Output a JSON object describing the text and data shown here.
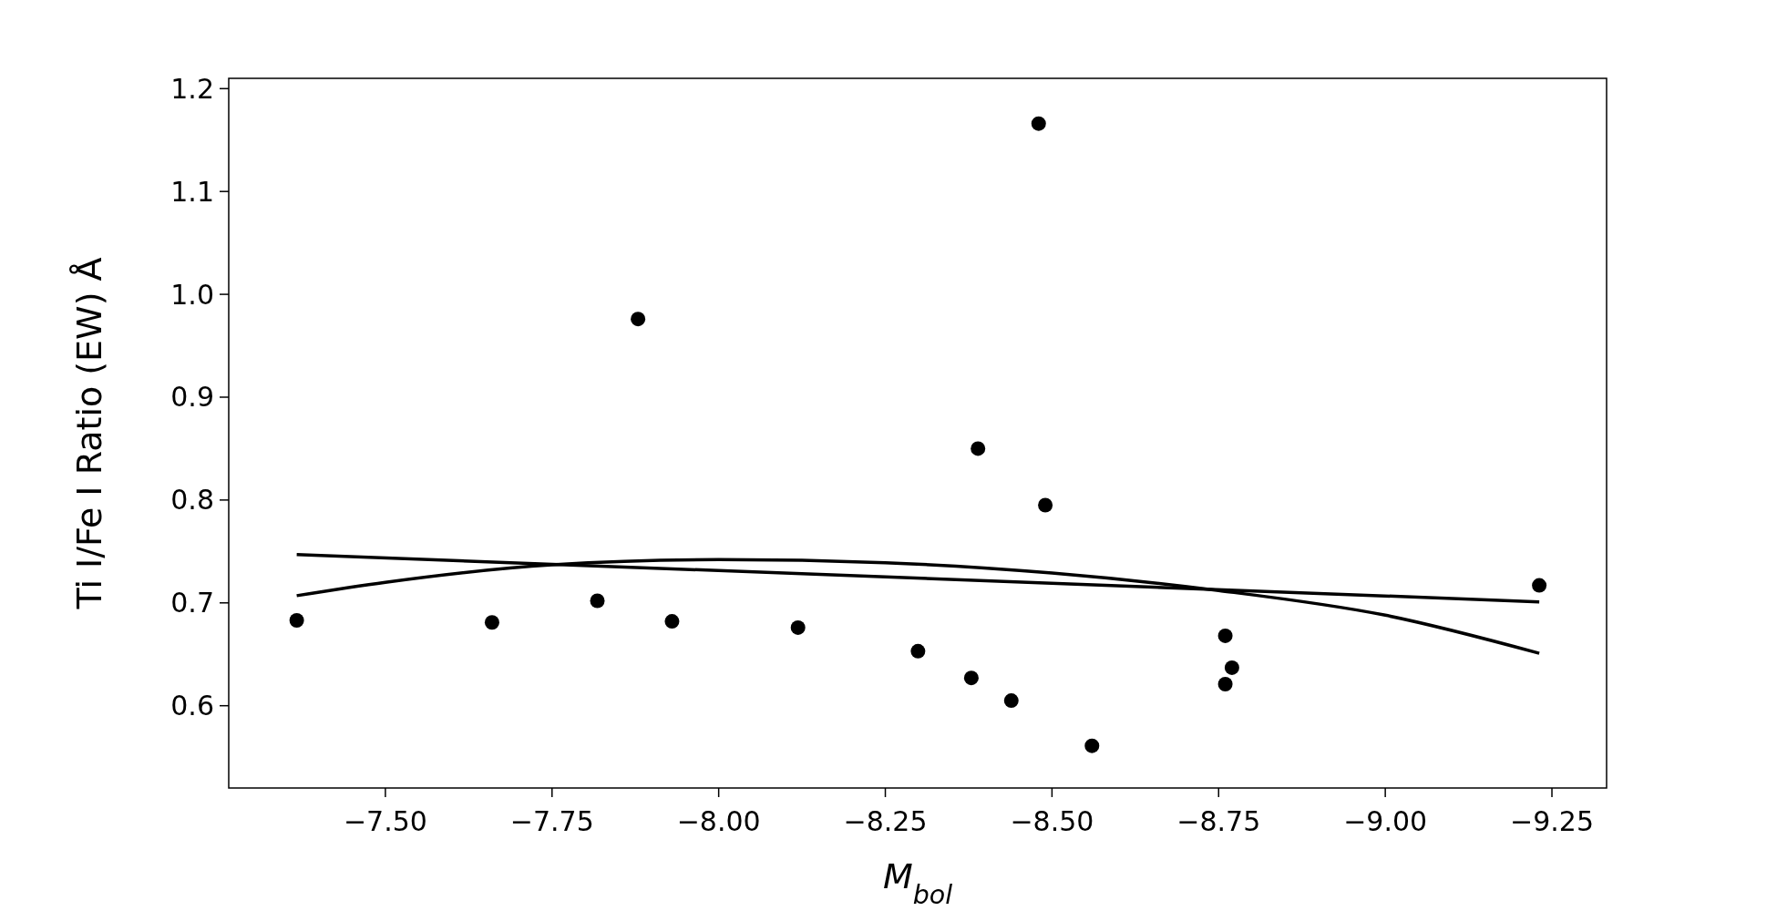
{
  "chart_data": {
    "type": "scatter",
    "xlabel": "M$_{bol}$",
    "ylabel": "Ti I/Fe I Ratio (EW) Å",
    "x": [
      -7.367,
      -7.66,
      -7.818,
      -7.879,
      -7.93,
      -8.119,
      -8.299,
      -8.379,
      -8.389,
      -8.439,
      -8.48,
      -8.49,
      -8.56,
      -8.76,
      -8.77,
      -8.76,
      -9.231
    ],
    "series": [
      {
        "marker": "circle",
        "color": "#000000",
        "values": [
          0.683,
          0.681,
          0.702,
          0.976,
          0.682,
          0.676,
          0.653,
          0.627,
          0.85,
          0.605,
          1.166,
          0.795,
          0.561,
          0.668,
          0.637,
          0.621,
          0.717
        ]
      },
      {
        "type": "line",
        "marker": "none",
        "color": "#000000",
        "x": [
          -7.367,
          -9.231
        ],
        "values": [
          0.747,
          0.701
        ]
      },
      {
        "type": "line",
        "marker": "none",
        "color": "#000000",
        "x": [
          -7.367,
          -7.5,
          -7.75,
          -8.0,
          -8.25,
          -8.5,
          -8.75,
          -9.0,
          -9.231
        ],
        "values": [
          0.707,
          0.72,
          0.737,
          0.742,
          0.739,
          0.729,
          0.712,
          0.688,
          0.651
        ]
      }
    ],
    "xlim": [
      -7.265,
      -9.332
    ],
    "ylim": [
      0.52,
      1.21
    ],
    "xticks": [
      {
        "value": -7.5,
        "label": "−7.50"
      },
      {
        "value": -7.75,
        "label": "−7.75"
      },
      {
        "value": -8.0,
        "label": "−8.00"
      },
      {
        "value": -8.25,
        "label": "−8.25"
      },
      {
        "value": -8.5,
        "label": "−8.50"
      },
      {
        "value": -8.75,
        "label": "−8.75"
      },
      {
        "value": -9.0,
        "label": "−9.00"
      },
      {
        "value": -9.25,
        "label": "−9.25"
      }
    ],
    "yticks": [
      0.6,
      0.7,
      0.8,
      0.9,
      {
        "value": 1.0,
        "label": "1.0"
      },
      1.1,
      1.2
    ],
    "line_style": "solid",
    "grid": false
  }
}
